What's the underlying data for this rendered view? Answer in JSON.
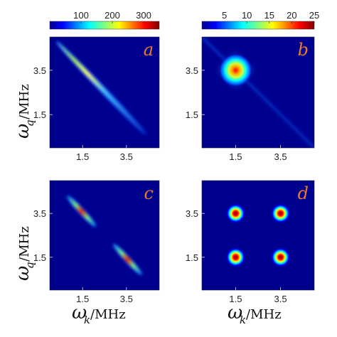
{
  "chart_data": {
    "type": "heatmap",
    "colormap": "jet",
    "colors": {
      "background": "#00008f",
      "label": "#e8792e"
    },
    "axes": {
      "xlabel_var": "ω",
      "xlabel_sub": "k",
      "xlabel_unit": "/MHz",
      "ylabel_var": "ω",
      "ylabel_sub": "q",
      "ylabel_unit": "/MHz",
      "xticks": [
        "1.5",
        "3.5"
      ],
      "yticks": [
        "3.5",
        "1.5"
      ],
      "range": [
        0,
        5
      ]
    },
    "colorbars": [
      {
        "ticks": [
          "100",
          "200",
          "300"
        ],
        "ticks_values": [
          100,
          200,
          300
        ],
        "range": [
          0,
          350
        ]
      },
      {
        "ticks": [
          "5",
          "10",
          "15",
          "20",
          "25"
        ],
        "ticks_values": [
          5,
          10,
          15,
          20,
          25
        ],
        "range": [
          0,
          25
        ]
      }
    ],
    "panels": [
      {
        "label": "a",
        "colorbar": 0,
        "peak": 350,
        "features": [
          {
            "kind": "ridge",
            "from": [
              0.3,
              4.8
            ],
            "to": [
              4.4,
              0.6
            ],
            "width": 0.05,
            "bright_center": [
              1.4,
              3.6
            ]
          }
        ]
      },
      {
        "label": "b",
        "colorbar": 1,
        "peak": 25,
        "features": [
          {
            "kind": "blob",
            "center": [
              1.5,
              3.5
            ],
            "spread": 0.5,
            "tails": true
          }
        ]
      },
      {
        "label": "c",
        "colorbar": 0,
        "peak": 350,
        "features": [
          {
            "kind": "ridge",
            "from": [
              0.8,
              4.3
            ],
            "to": [
              2.1,
              2.9
            ],
            "width": 0.05
          },
          {
            "kind": "ridge",
            "from": [
              2.9,
              2.1
            ],
            "to": [
              4.2,
              0.7
            ],
            "width": 0.05
          }
        ]
      },
      {
        "label": "d",
        "colorbar": 1,
        "peak": 25,
        "features": [
          {
            "kind": "spot",
            "center": [
              1.5,
              3.5
            ],
            "spread": 0.32
          },
          {
            "kind": "spot",
            "center": [
              3.5,
              3.5
            ],
            "spread": 0.32
          },
          {
            "kind": "spot",
            "center": [
              1.5,
              1.5
            ],
            "spread": 0.32
          },
          {
            "kind": "spot",
            "center": [
              3.5,
              1.5
            ],
            "spread": 0.32
          }
        ]
      }
    ]
  }
}
